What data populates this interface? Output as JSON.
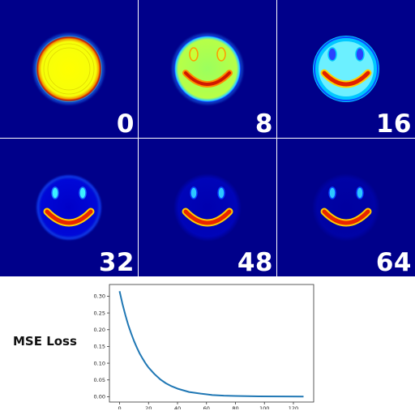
{
  "colors": {
    "background": "#00008a",
    "curve": "#1f77b4",
    "axis": "#333333",
    "label_text": "#ffffff"
  },
  "snapshots": [
    {
      "label": "0",
      "stage": "disk"
    },
    {
      "label": "8",
      "stage": "face-bright"
    },
    {
      "label": "16",
      "stage": "face-ring"
    },
    {
      "label": "32",
      "stage": "face-faint"
    },
    {
      "label": "48",
      "stage": "face-dim"
    },
    {
      "label": "64",
      "stage": "face-clean"
    }
  ],
  "loss_title": "MSE Loss",
  "chart_data": {
    "type": "line",
    "title": "",
    "xlabel": "",
    "ylabel": "",
    "xlim": [
      -7,
      134
    ],
    "ylim": [
      -0.016,
      0.335
    ],
    "xticks": [
      0,
      20,
      40,
      60,
      80,
      100,
      120
    ],
    "yticks": [
      0.0,
      0.05,
      0.1,
      0.15,
      0.2,
      0.25,
      0.3
    ],
    "ytick_labels": [
      "0.00",
      "0.05",
      "0.10",
      "0.15",
      "0.20",
      "0.25",
      "0.30"
    ],
    "grid": false,
    "series": [
      {
        "x": [
          0,
          2,
          4,
          6,
          8,
          10,
          12,
          14,
          16,
          18,
          20,
          24,
          28,
          32,
          36,
          40,
          48,
          56,
          64,
          72,
          80,
          96,
          112,
          127
        ],
        "values": [
          0.315,
          0.277,
          0.244,
          0.214,
          0.189,
          0.166,
          0.146,
          0.128,
          0.113,
          0.099,
          0.087,
          0.068,
          0.052,
          0.04,
          0.031,
          0.024,
          0.014,
          0.009,
          0.005,
          0.003,
          0.002,
          0.001,
          0.0005,
          0.0003
        ]
      }
    ]
  }
}
